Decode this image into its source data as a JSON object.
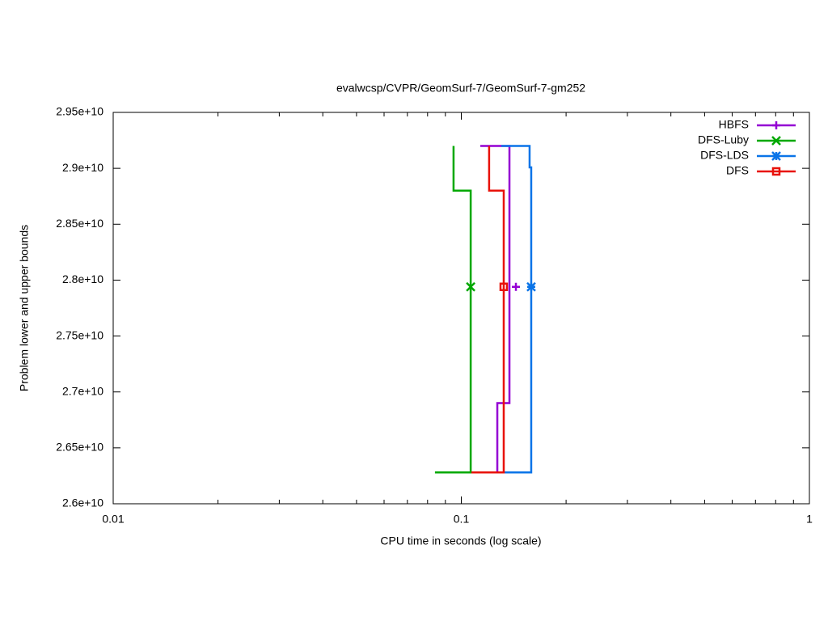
{
  "chart_data": {
    "type": "line",
    "title": "evalwcsp/CVPR/GeomSurf-7/GeomSurf-7-gm252",
    "x_label": "CPU time in seconds (log scale)",
    "y_label": "Problem lower and upper bounds",
    "xlim": [
      0.01,
      1
    ],
    "xticks": [
      0.01,
      0.1,
      1
    ],
    "x_log": true,
    "ylim": [
      26000000000,
      29500000000
    ],
    "yticks": [
      {
        "value": 26000000000,
        "label": "2.6e+10"
      },
      {
        "value": 26500000000,
        "label": "2.65e+10"
      },
      {
        "value": 27000000000,
        "label": "2.7e+10"
      },
      {
        "value": 27500000000,
        "label": "2.75e+10"
      },
      {
        "value": 28000000000,
        "label": "2.8e+10"
      },
      {
        "value": 28500000000,
        "label": "2.85e+10"
      },
      {
        "value": 29000000000,
        "label": "2.9e+10"
      },
      {
        "value": 29500000000,
        "label": "2.95e+10"
      }
    ],
    "legend": "top-right",
    "series": [
      {
        "name": "HBFS",
        "color": "#9400d3",
        "marker": "plus",
        "x": [
          0.1024,
          0.1269,
          0.1269,
          0.1375,
          0.1375,
          0.1134
        ],
        "values": [
          26280000000,
          26280000000,
          26900000000,
          26900000000,
          29200000000,
          29200000000
        ],
        "marker_x": 0.1435,
        "marker_y": 27940000000
      },
      {
        "name": "DFS-Luby",
        "color": "#00a800",
        "marker": "cross",
        "x": [
          0.084,
          0.1064,
          0.1064,
          0.095,
          0.095
        ],
        "values": [
          26280000000,
          26280000000,
          28800000000,
          28800000000,
          29200000000
        ],
        "marker_x": 0.1064,
        "marker_y": 27940000000
      },
      {
        "name": "DFS-LDS",
        "color": "#0a74e8",
        "marker": "star",
        "x": [
          0.1303,
          0.1588,
          0.1588,
          0.1571,
          0.1571,
          0.1303
        ],
        "values": [
          26280000000,
          26280000000,
          29008000000,
          29008000000,
          29200000000,
          29200000000
        ],
        "marker_x": 0.1588,
        "marker_y": 27940000000
      },
      {
        "name": "DFS",
        "color": "#e8120a",
        "marker": "square",
        "x": [
          0.1069,
          0.1324,
          0.1324,
          0.1202,
          0.1202
        ],
        "values": [
          26280000000,
          26280000000,
          28800000000,
          28800000000,
          29200000000
        ],
        "marker_x": 0.1324,
        "marker_y": 27940000000
      }
    ]
  }
}
